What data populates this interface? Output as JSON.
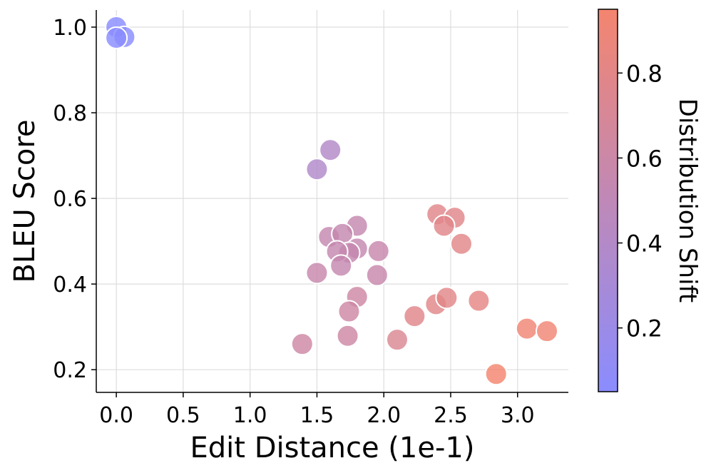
{
  "chart_data": {
    "type": "scatter",
    "xlabel": "Edit Distance (1e-1)",
    "ylabel": "BLEU Score",
    "colorbar_label": "Distribution Shift",
    "xlim": [
      -0.15,
      3.38
    ],
    "ylim": [
      0.147,
      1.04
    ],
    "xticks": [
      0.0,
      0.5,
      1.0,
      1.5,
      2.0,
      2.5,
      3.0
    ],
    "yticks": [
      0.2,
      0.4,
      0.6,
      0.8,
      1.0
    ],
    "xtick_labels": [
      "0.0",
      "0.5",
      "1.0",
      "1.5",
      "2.0",
      "2.5",
      "3.0"
    ],
    "ytick_labels": [
      "0.2",
      "0.4",
      "0.6",
      "0.8",
      "1.0"
    ],
    "grid": true,
    "colorbar": {
      "range": [
        0.05,
        0.95
      ],
      "ticks": [
        0.2,
        0.4,
        0.6,
        0.8
      ],
      "tick_labels": [
        "0.2",
        "0.4",
        "0.6",
        "0.8"
      ],
      "color_low": "#8a8cff",
      "color_high": "#f4856f"
    },
    "points": [
      {
        "x": 0.0,
        "y": 1.0,
        "c": 0.05
      },
      {
        "x": 0.06,
        "y": 0.977,
        "c": 0.05
      },
      {
        "x": 0.0,
        "y": 0.975,
        "c": 0.05
      },
      {
        "x": 1.6,
        "y": 0.713,
        "c": 0.4
      },
      {
        "x": 1.5,
        "y": 0.668,
        "c": 0.38
      },
      {
        "x": 1.8,
        "y": 0.536,
        "c": 0.55
      },
      {
        "x": 1.59,
        "y": 0.51,
        "c": 0.55
      },
      {
        "x": 1.69,
        "y": 0.517,
        "c": 0.55
      },
      {
        "x": 1.8,
        "y": 0.483,
        "c": 0.55
      },
      {
        "x": 1.74,
        "y": 0.473,
        "c": 0.55
      },
      {
        "x": 1.65,
        "y": 0.476,
        "c": 0.55
      },
      {
        "x": 1.68,
        "y": 0.443,
        "c": 0.55
      },
      {
        "x": 1.96,
        "y": 0.477,
        "c": 0.57
      },
      {
        "x": 1.5,
        "y": 0.426,
        "c": 0.57
      },
      {
        "x": 1.95,
        "y": 0.421,
        "c": 0.57
      },
      {
        "x": 1.8,
        "y": 0.37,
        "c": 0.62
      },
      {
        "x": 1.74,
        "y": 0.336,
        "c": 0.62
      },
      {
        "x": 1.73,
        "y": 0.279,
        "c": 0.62
      },
      {
        "x": 1.39,
        "y": 0.26,
        "c": 0.62
      },
      {
        "x": 2.1,
        "y": 0.27,
        "c": 0.74
      },
      {
        "x": 2.23,
        "y": 0.325,
        "c": 0.78
      },
      {
        "x": 2.39,
        "y": 0.353,
        "c": 0.8
      },
      {
        "x": 2.47,
        "y": 0.368,
        "c": 0.8
      },
      {
        "x": 2.71,
        "y": 0.361,
        "c": 0.82
      },
      {
        "x": 2.4,
        "y": 0.563,
        "c": 0.78
      },
      {
        "x": 2.53,
        "y": 0.555,
        "c": 0.78
      },
      {
        "x": 2.45,
        "y": 0.536,
        "c": 0.78
      },
      {
        "x": 2.58,
        "y": 0.494,
        "c": 0.8
      },
      {
        "x": 2.84,
        "y": 0.19,
        "c": 0.95
      },
      {
        "x": 3.07,
        "y": 0.296,
        "c": 0.92
      },
      {
        "x": 3.22,
        "y": 0.29,
        "c": 0.92
      }
    ]
  }
}
